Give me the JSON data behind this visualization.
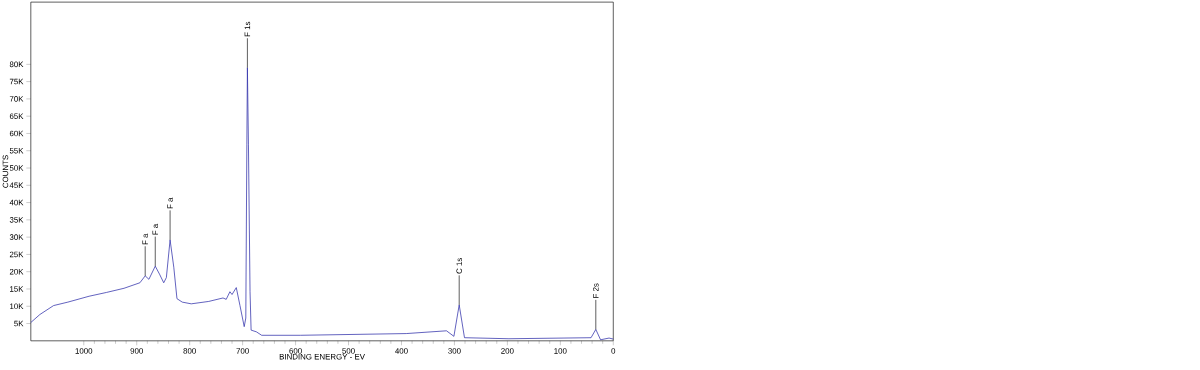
{
  "chart_data": {
    "type": "line",
    "xlabel": "BINDING ENERGY - EV",
    "ylabel": "COUNTS",
    "xlim": [
      1100,
      0
    ],
    "xticks": [
      1000,
      900,
      800,
      700,
      600,
      500,
      400,
      300,
      200,
      100,
      0
    ],
    "ylim": [
      0,
      98000
    ],
    "yticks": [
      {
        "value": 5000,
        "label": "5K"
      },
      {
        "value": 10000,
        "label": "10K"
      },
      {
        "value": 15000,
        "label": "15K"
      },
      {
        "value": 20000,
        "label": "20K"
      },
      {
        "value": 25000,
        "label": "25K"
      },
      {
        "value": 30000,
        "label": "30K"
      },
      {
        "value": 35000,
        "label": "35K"
      },
      {
        "value": 40000,
        "label": "40K"
      },
      {
        "value": 45000,
        "label": "45K"
      },
      {
        "value": 50000,
        "label": "50K"
      },
      {
        "value": 55000,
        "label": "55K"
      },
      {
        "value": 60000,
        "label": "60K"
      },
      {
        "value": 65000,
        "label": "65K"
      },
      {
        "value": 70000,
        "label": "70K"
      },
      {
        "value": 75000,
        "label": "75K"
      },
      {
        "value": 80000,
        "label": "80K"
      }
    ],
    "grid": false,
    "marker": "none",
    "line_style": "solid",
    "series": [
      {
        "color": "#2a2aa8",
        "x": [
          1100,
          1083,
          1057,
          1030,
          990,
          957,
          924,
          894,
          884,
          877,
          865,
          857,
          849,
          844,
          837,
          830,
          824,
          814,
          797,
          764,
          737,
          731,
          724,
          720,
          712,
          705,
          697,
          694,
          692,
          691,
          689,
          686,
          684,
          674,
          664,
          591,
          391,
          315,
          301,
          291,
          281,
          197,
          42,
          33,
          24,
          8,
          0
        ],
        "values": [
          5300,
          7600,
          10200,
          11200,
          12900,
          14000,
          15200,
          16800,
          18800,
          17800,
          21600,
          19300,
          16800,
          18300,
          29200,
          21300,
          12200,
          11200,
          10700,
          11400,
          12400,
          12000,
          14200,
          13400,
          15400,
          10200,
          4100,
          6600,
          56700,
          79000,
          56700,
          14200,
          3100,
          2600,
          1600,
          1600,
          2100,
          2900,
          1300,
          10400,
          900,
          600,
          900,
          3300,
          300,
          800,
          500
        ]
      }
    ],
    "annotations": [
      {
        "text": "F a",
        "x": 884,
        "y": 18800
      },
      {
        "text": "F a",
        "x": 865,
        "y": 21600
      },
      {
        "text": "F a",
        "x": 837,
        "y": 29200
      },
      {
        "text": "F 1s",
        "x": 691,
        "y": 79000
      },
      {
        "text": "C 1s",
        "x": 291,
        "y": 10400
      },
      {
        "text": "F 2s",
        "x": 33,
        "y": 3300
      }
    ]
  }
}
